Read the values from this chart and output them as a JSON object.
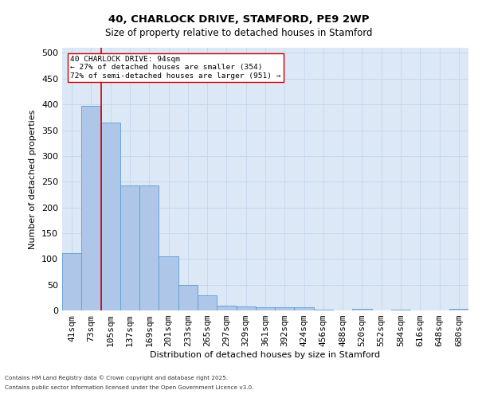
{
  "title1": "40, CHARLOCK DRIVE, STAMFORD, PE9 2WP",
  "title2": "Size of property relative to detached houses in Stamford",
  "xlabel": "Distribution of detached houses by size in Stamford",
  "ylabel": "Number of detached properties",
  "categories": [
    "41sqm",
    "73sqm",
    "105sqm",
    "137sqm",
    "169sqm",
    "201sqm",
    "233sqm",
    "265sqm",
    "297sqm",
    "329sqm",
    "361sqm",
    "392sqm",
    "424sqm",
    "456sqm",
    "488sqm",
    "520sqm",
    "552sqm",
    "584sqm",
    "616sqm",
    "648sqm",
    "680sqm"
  ],
  "values": [
    112,
    397,
    365,
    243,
    243,
    105,
    50,
    30,
    10,
    8,
    6,
    6,
    6,
    1,
    0,
    3,
    0,
    1,
    0,
    0,
    3
  ],
  "bar_color": "#aec6e8",
  "bar_edge_color": "#5a9fd4",
  "vline_color": "#cc0000",
  "annotation_text": "40 CHARLOCK DRIVE: 94sqm\n← 27% of detached houses are smaller (354)\n72% of semi-detached houses are larger (951) →",
  "annotation_box_color": "#ffffff",
  "annotation_box_edge": "#cc0000",
  "grid_color": "#c8d8ec",
  "background_color": "#dce8f5",
  "footer1": "Contains HM Land Registry data © Crown copyright and database right 2025.",
  "footer2": "Contains public sector information licensed under the Open Government Licence v3.0.",
  "ylim": [
    0,
    510
  ],
  "yticks": [
    0,
    50,
    100,
    150,
    200,
    250,
    300,
    350,
    400,
    450,
    500
  ]
}
